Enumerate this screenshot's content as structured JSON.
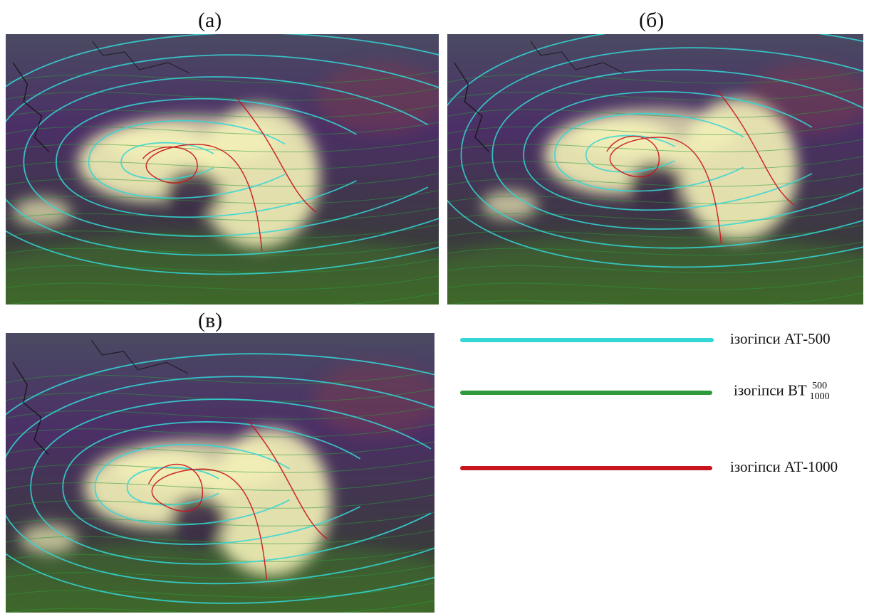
{
  "panels": [
    {
      "label": "(а)"
    },
    {
      "label": "(б)"
    },
    {
      "label": "(в)"
    }
  ],
  "legend": {
    "items": [
      {
        "text": "ізогіпси АТ-500",
        "color": "#34d6d6"
      },
      {
        "text": "ізогіпси ВТ",
        "sup": "500",
        "sub": "1000",
        "color": "#2e9a3a"
      },
      {
        "text": "ізогіпси АТ-1000",
        "color": "#c8141c"
      }
    ]
  },
  "colors": {
    "background": "#3b2a55",
    "cloud": "#f4f2b8",
    "at500": "#34d6d6",
    "bt": "#2e9a3a",
    "at1000": "#c8141c"
  }
}
